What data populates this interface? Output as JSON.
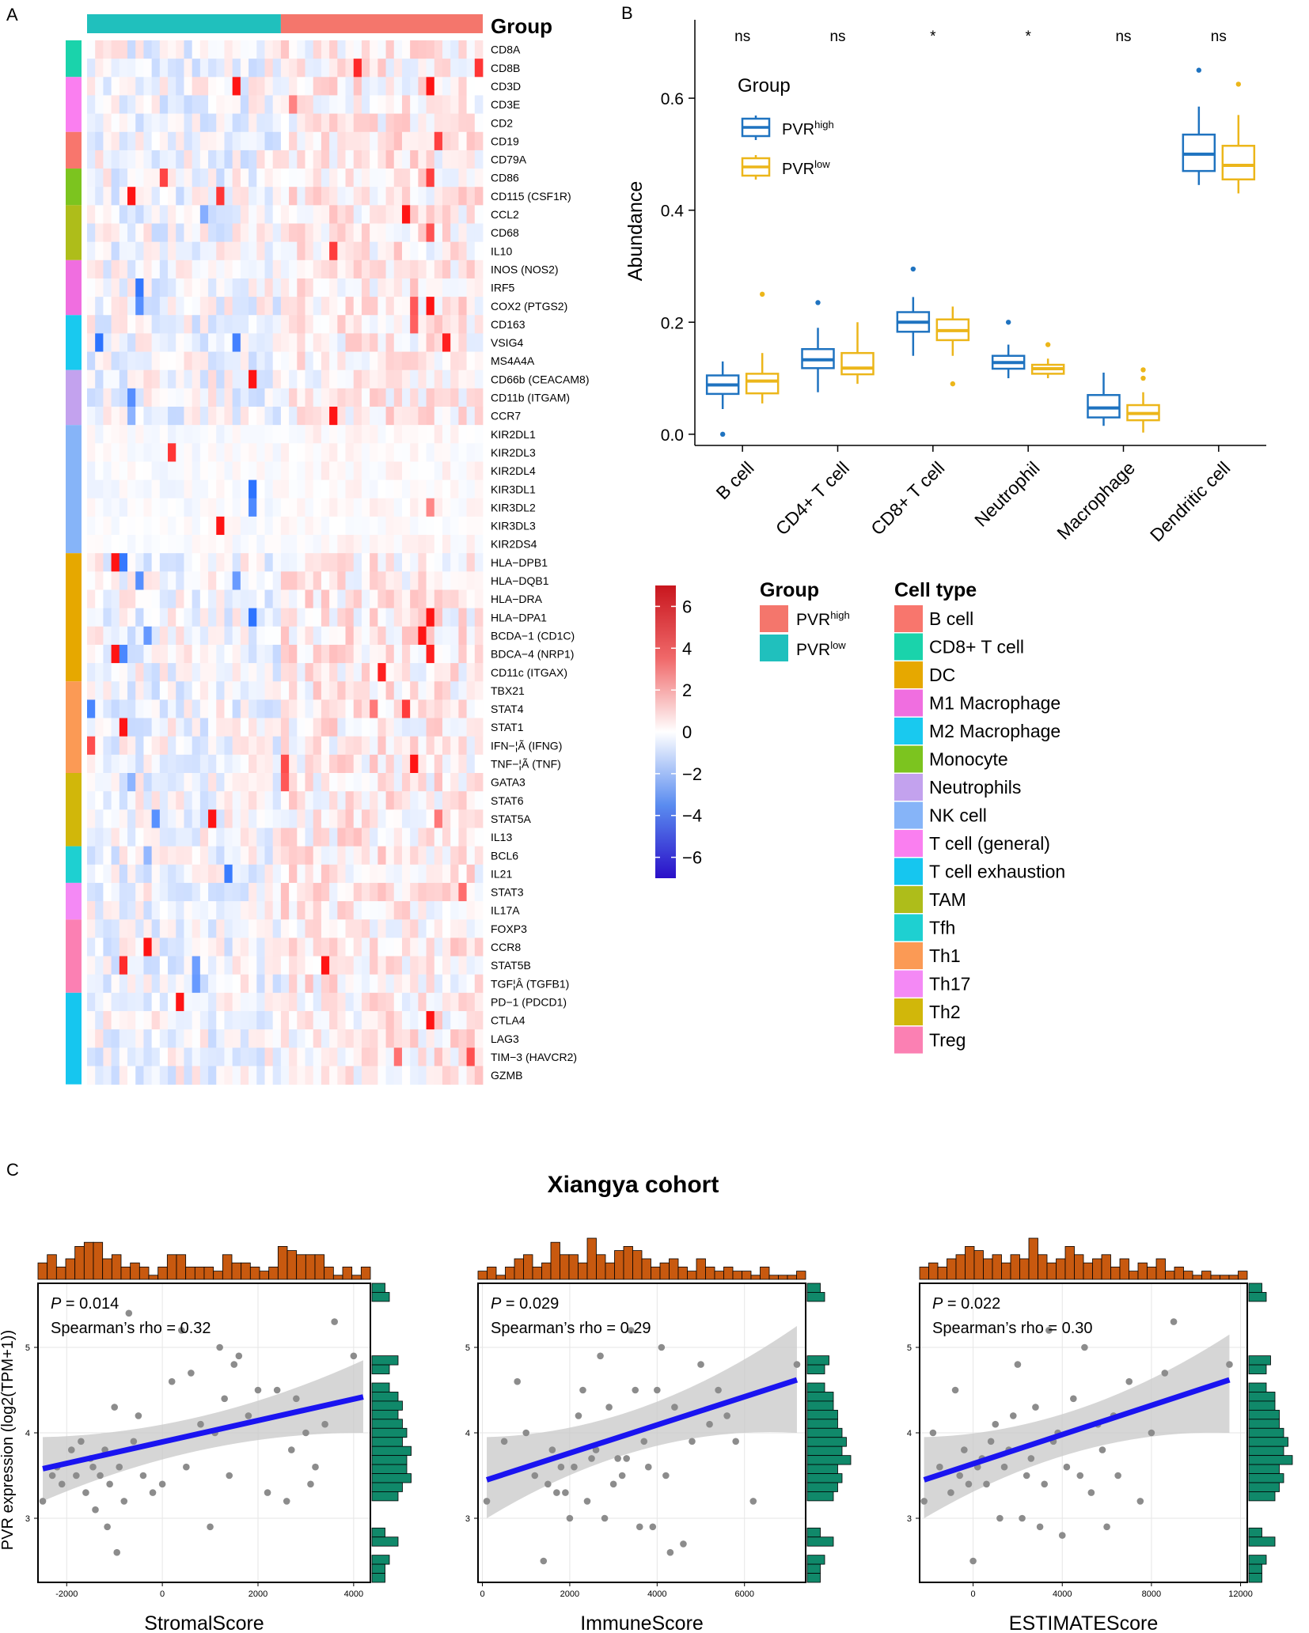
{
  "panel_labels": {
    "a": "A",
    "b": "B",
    "c": "C"
  },
  "chart_data": [
    {
      "id": "A",
      "type": "heatmap",
      "title": "",
      "legend_title": "Group",
      "genes": [
        "CD8A",
        "CD8B",
        "CD3D",
        "CD3E",
        "CD2",
        "CD19",
        "CD79A",
        "CD86",
        "CD115 (CSF1R)",
        "CCL2",
        "CD68",
        "IL10",
        "INOS (NOS2)",
        "IRF5",
        "COX2 (PTGS2)",
        "CD163",
        "VSIG4",
        "MS4A4A",
        "CD66b (CEACAM8)",
        "CD11b (ITGAM)",
        "CCR7",
        "KIR2DL1",
        "KIR2DL3",
        "KIR2DL4",
        "KIR3DL1",
        "KIR3DL2",
        "KIR3DL3",
        "KIR2DS4",
        "HLA−DPB1",
        "HLA−DQB1",
        "HLA−DRA",
        "HLA−DPA1",
        "BCDA−1 (CD1C)",
        "BDCA−4 (NRP1)",
        "CD11c (ITGAX)",
        "TBX21",
        "STAT4",
        "STAT1",
        "IFN−¦Ã (IFNG)",
        "TNF−¦Ã (TNF)",
        "GATA3",
        "STAT6",
        "STAT5A",
        "IL13",
        "BCL6",
        "IL21",
        "STAT3",
        "IL17A",
        "FOXP3",
        "CCR8",
        "STAT5B",
        "TGF¦Â (TGFB1)",
        "PD−1 (PDCD1)",
        "CTLA4",
        "LAG3",
        "TIM−3 (HAVCR2)",
        "GZMB"
      ],
      "groups": [
        {
          "name": "PVRlow",
          "n_samples": 24,
          "color": "#20c0bd"
        },
        {
          "name": "PVRhigh",
          "n_samples": 25,
          "color": "#f4766c"
        }
      ],
      "color_scale": {
        "ticks": [
          "6",
          "4",
          "2",
          "0",
          "−2",
          "−4",
          "−6"
        ],
        "range": [
          -7,
          7
        ],
        "low": "#2a0fc8",
        "mid": "#ffffff",
        "high": "#d21a1a"
      },
      "values_note": "z-scored expression per gene; cell values not readable individually"
    },
    {
      "id": "B",
      "type": "box",
      "ylabel": "Abundance",
      "xlabel": "",
      "ylim": [
        -0.02,
        0.74
      ],
      "yticks": [
        "0.0",
        "0.2",
        "0.4",
        "0.6"
      ],
      "categories": [
        "B cell",
        "CD4+ T cell",
        "CD8+ T cell",
        "Neutrophil",
        "Macrophage",
        "Dendritic cell"
      ],
      "significance": [
        "ns",
        "ns",
        "*",
        "*",
        "ns",
        "ns"
      ],
      "legend": {
        "title": "Group",
        "items": [
          {
            "base": "PVR",
            "sup": "high"
          },
          {
            "base": "PVR",
            "sup": "low"
          }
        ]
      },
      "series": [
        {
          "name": "PVRhigh",
          "color": "#1f73c0",
          "boxes": [
            {
              "min": 0.045,
              "q1": 0.072,
              "med": 0.088,
              "q3": 0.105,
              "max": 0.13,
              "outliers": [
                0.0
              ]
            },
            {
              "min": 0.075,
              "q1": 0.118,
              "med": 0.133,
              "q3": 0.152,
              "max": 0.19,
              "outliers": [
                0.235
              ]
            },
            {
              "min": 0.14,
              "q1": 0.183,
              "med": 0.2,
              "q3": 0.218,
              "max": 0.245,
              "outliers": [
                0.295
              ]
            },
            {
              "min": 0.1,
              "q1": 0.117,
              "med": 0.128,
              "q3": 0.14,
              "max": 0.16,
              "outliers": [
                0.2
              ]
            },
            {
              "min": 0.015,
              "q1": 0.03,
              "med": 0.047,
              "q3": 0.07,
              "max": 0.11,
              "outliers": []
            },
            {
              "min": 0.445,
              "q1": 0.47,
              "med": 0.5,
              "q3": 0.535,
              "max": 0.585,
              "outliers": [
                0.65
              ]
            }
          ]
        },
        {
          "name": "PVRlow",
          "color": "#ecb61a",
          "boxes": [
            {
              "min": 0.055,
              "q1": 0.073,
              "med": 0.095,
              "q3": 0.108,
              "max": 0.145,
              "outliers": [
                0.25
              ]
            },
            {
              "min": 0.09,
              "q1": 0.107,
              "med": 0.118,
              "q3": 0.145,
              "max": 0.2,
              "outliers": []
            },
            {
              "min": 0.14,
              "q1": 0.168,
              "med": 0.185,
              "q3": 0.205,
              "max": 0.228,
              "outliers": [
                0.09
              ]
            },
            {
              "min": 0.1,
              "q1": 0.108,
              "med": 0.117,
              "q3": 0.124,
              "max": 0.135,
              "outliers": [
                0.16
              ]
            },
            {
              "min": 0.003,
              "q1": 0.025,
              "med": 0.037,
              "q3": 0.052,
              "max": 0.075,
              "outliers": [
                0.1,
                0.115
              ]
            },
            {
              "min": 0.43,
              "q1": 0.455,
              "med": 0.48,
              "q3": 0.515,
              "max": 0.57,
              "outliers": [
                0.625
              ]
            }
          ]
        }
      ]
    },
    {
      "id": "C1",
      "type": "scatter",
      "xlabel": "StromalScore",
      "ylabel": "PVR expression (log2(TPM+1))",
      "xlim": [
        -2600,
        4350
      ],
      "ylim": [
        2.25,
        5.75
      ],
      "xticks": [
        -2000,
        0,
        2000,
        4000
      ],
      "yticks": [
        3,
        4,
        5
      ],
      "annotation_p": "= 0.014",
      "annotation_rho": "Spearman’s rho = 0.32",
      "fit": {
        "x": [
          -2500,
          4200
        ],
        "y": [
          3.58,
          4.42
        ],
        "ci_low_left": 3.2,
        "ci_high_left": 3.95,
        "ci_low_right": 4.0,
        "ci_high_right": 4.85
      },
      "points": {
        "x": [
          -2500,
          -2300,
          -2200,
          -2100,
          -1900,
          -1800,
          -1700,
          -1600,
          -1500,
          -1450,
          -1400,
          -1300,
          -1200,
          -1150,
          -1100,
          -1000,
          -950,
          -900,
          -800,
          -700,
          -600,
          -500,
          -400,
          -200,
          0,
          200,
          400,
          500,
          600,
          800,
          1000,
          1100,
          1200,
          1300,
          1400,
          1500,
          1600,
          1800,
          2000,
          2200,
          2400,
          2600,
          2700,
          2800,
          3000,
          3100,
          3200,
          3400,
          3600,
          4000
        ],
        "y": [
          3.2,
          3.5,
          3.6,
          3.4,
          3.8,
          3.5,
          3.9,
          3.3,
          3.7,
          3.6,
          3.1,
          3.5,
          3.8,
          2.9,
          3.4,
          4.3,
          2.6,
          3.6,
          3.2,
          5.4,
          3.9,
          4.2,
          3.5,
          3.3,
          3.4,
          4.6,
          5.2,
          3.6,
          4.7,
          4.1,
          2.9,
          4.0,
          5.0,
          4.4,
          3.5,
          4.8,
          4.9,
          4.2,
          4.5,
          3.3,
          4.5,
          3.2,
          3.8,
          4.4,
          4.0,
          3.4,
          3.6,
          4.1,
          5.3,
          4.9
        ]
      },
      "top_hist": [
        0.4,
        0.6,
        0.3,
        0.5,
        0.8,
        0.9,
        0.9,
        0.5,
        0.6,
        0.3,
        0.4,
        0.3,
        0.1,
        0.3,
        0.6,
        0.6,
        0.3,
        0.3,
        0.3,
        0.2,
        0.6,
        0.4,
        0.4,
        0.3,
        0.2,
        0.3,
        0.8,
        0.7,
        0.6,
        0.6,
        0.6,
        0.3,
        0.1,
        0.3,
        0.1,
        0.3
      ],
      "right_hist": [
        0.3,
        0.4,
        0,
        0,
        0,
        0,
        0,
        0,
        0.6,
        0.4,
        0,
        0.4,
        0.6,
        0.7,
        0.6,
        0.7,
        0.8,
        0.7,
        0.9,
        0.8,
        0.8,
        0.9,
        0.7,
        0.6,
        0,
        0,
        0,
        0.3,
        0.6,
        0,
        0.4,
        0.3,
        0.3
      ]
    },
    {
      "id": "C2",
      "type": "scatter",
      "xlabel": "ImmuneScore",
      "ylabel": "",
      "xlim": [
        -100,
        7400
      ],
      "ylim": [
        2.25,
        5.75
      ],
      "xticks": [
        0,
        2000,
        4000,
        6000
      ],
      "yticks": [
        3,
        4,
        5
      ],
      "annotation_p": "= 0.029",
      "annotation_rho": "Spearman’s rho = 0.29",
      "fit": {
        "x": [
          100,
          7200
        ],
        "y": [
          3.45,
          4.62
        ],
        "ci_low_left": 3.0,
        "ci_high_left": 3.95,
        "ci_low_right": 4.0,
        "ci_high_right": 5.25
      },
      "points": {
        "x": [
          100,
          500,
          800,
          1000,
          1200,
          1400,
          1500,
          1600,
          1700,
          1800,
          1900,
          2000,
          2100,
          2200,
          2300,
          2400,
          2500,
          2600,
          2700,
          2800,
          2900,
          3000,
          3100,
          3200,
          3300,
          3400,
          3500,
          3600,
          3700,
          3800,
          3900,
          4000,
          4100,
          4200,
          4300,
          4400,
          4600,
          4800,
          5000,
          5200,
          5400,
          5600,
          5800,
          6200,
          7200
        ],
        "y": [
          3.2,
          3.9,
          4.6,
          4.0,
          3.5,
          2.5,
          3.4,
          3.8,
          3.3,
          3.6,
          3.3,
          3.0,
          3.6,
          4.2,
          4.5,
          3.2,
          3.7,
          3.8,
          4.9,
          3.0,
          4.3,
          3.4,
          3.7,
          3.5,
          3.7,
          5.2,
          4.5,
          2.9,
          3.9,
          3.6,
          2.9,
          4.5,
          5.0,
          3.5,
          2.6,
          4.3,
          2.7,
          3.9,
          4.8,
          4.1,
          4.5,
          4.2,
          3.9,
          3.2,
          4.8
        ]
      },
      "top_hist": [
        0.2,
        0.3,
        0.1,
        0.3,
        0.5,
        0.6,
        0.3,
        0.4,
        0.9,
        0.6,
        0.6,
        0.4,
        1.0,
        0.6,
        0.4,
        0.7,
        0.8,
        0.7,
        0.5,
        0.3,
        0.4,
        0.5,
        0.3,
        0.2,
        0.5,
        0.3,
        0.2,
        0.3,
        0.2,
        0.2,
        0.1,
        0.3,
        0.1,
        0.1,
        0.1,
        0.2
      ],
      "right_hist": [
        0.3,
        0.4,
        0,
        0,
        0,
        0,
        0,
        0,
        0.5,
        0.4,
        0,
        0.4,
        0.6,
        0.6,
        0.7,
        0.7,
        0.8,
        0.9,
        0.8,
        1.0,
        0.7,
        0.8,
        0.7,
        0.6,
        0,
        0,
        0,
        0.3,
        0.6,
        0,
        0.4,
        0.3,
        0.3
      ]
    },
    {
      "id": "C3",
      "type": "scatter",
      "xlabel": "ESTIMATEScore",
      "ylabel": "",
      "xlim": [
        -2400,
        12300
      ],
      "ylim": [
        2.25,
        5.75
      ],
      "xticks": [
        0,
        4000,
        8000,
        12000
      ],
      "yticks": [
        3,
        4,
        5
      ],
      "annotation_p": "= 0.022",
      "annotation_rho": "Spearman’s rho = 0.30",
      "fit": {
        "x": [
          -2200,
          11500
        ],
        "y": [
          3.45,
          4.62
        ],
        "ci_low_left": 3.0,
        "ci_high_left": 3.95,
        "ci_low_right": 4.0,
        "ci_high_right": 5.15
      },
      "points": {
        "x": [
          -2200,
          -1800,
          -1500,
          -1000,
          -800,
          -600,
          -400,
          -200,
          0,
          200,
          400,
          600,
          800,
          1000,
          1200,
          1400,
          1600,
          1800,
          2000,
          2200,
          2400,
          2600,
          2800,
          3000,
          3200,
          3400,
          3600,
          3800,
          4000,
          4200,
          4500,
          4800,
          5000,
          5300,
          5600,
          5800,
          6000,
          6300,
          6500,
          7000,
          7500,
          8000,
          8600,
          9000,
          11500
        ],
        "y": [
          3.2,
          4.0,
          3.6,
          3.3,
          4.5,
          3.5,
          3.8,
          3.4,
          2.5,
          3.6,
          3.7,
          3.4,
          3.9,
          4.1,
          3.0,
          3.6,
          3.8,
          4.2,
          4.8,
          3.0,
          3.5,
          3.7,
          4.3,
          2.9,
          3.4,
          5.2,
          3.9,
          4.0,
          2.8,
          3.6,
          4.4,
          3.5,
          5.0,
          3.3,
          4.1,
          3.8,
          2.9,
          4.2,
          3.5,
          4.6,
          3.2,
          4.0,
          4.7,
          5.3,
          4.8
        ]
      },
      "top_hist": [
        0.3,
        0.4,
        0.3,
        0.5,
        0.6,
        0.8,
        0.7,
        0.5,
        0.6,
        0.4,
        0.6,
        0.5,
        1.0,
        0.6,
        0.4,
        0.5,
        0.8,
        0.6,
        0.4,
        0.5,
        0.6,
        0.3,
        0.5,
        0.2,
        0.4,
        0.3,
        0.5,
        0.2,
        0.3,
        0.2,
        0.1,
        0.2,
        0.1,
        0.1,
        0.1,
        0.2
      ],
      "right_hist": [
        0.3,
        0.4,
        0,
        0,
        0,
        0,
        0,
        0,
        0.5,
        0.4,
        0,
        0.4,
        0.6,
        0.6,
        0.7,
        0.7,
        0.8,
        0.9,
        0.8,
        1.0,
        0.7,
        0.8,
        0.7,
        0.6,
        0,
        0,
        0,
        0.3,
        0.6,
        0,
        0.4,
        0.3,
        0.3
      ]
    }
  ],
  "panelC_title": "Xiangya cohort",
  "legends": {
    "group_title": "Group",
    "group_items": [
      {
        "base": "PVR",
        "sup": "high",
        "color": "#f4766c"
      },
      {
        "base": "PVR",
        "sup": "low",
        "color": "#20c0bd"
      }
    ],
    "celltype_title": "Cell type",
    "celltype_items": [
      {
        "label": "B cell",
        "color": "#f8766d"
      },
      {
        "label": "CD8+ T cell",
        "color": "#1ad3ab"
      },
      {
        "label": "DC",
        "color": "#e6a800"
      },
      {
        "label": "M1 Macrophage",
        "color": "#f06ee0"
      },
      {
        "label": "M2 Macrophage",
        "color": "#19c9ef"
      },
      {
        "label": "Monocyte",
        "color": "#7cc41f"
      },
      {
        "label": "Neutrophils",
        "color": "#c3a2ee"
      },
      {
        "label": "NK cell",
        "color": "#86b4f8"
      },
      {
        "label": "T cell (general)",
        "color": "#fa7ff0"
      },
      {
        "label": "T cell exhaustion",
        "color": "#16c6ef"
      },
      {
        "label": "TAM",
        "color": "#aebd1a"
      },
      {
        "label": "Tfh",
        "color": "#1ed0d1"
      },
      {
        "label": "Th1",
        "color": "#fb9a55"
      },
      {
        "label": "Th17",
        "color": "#f489f5"
      },
      {
        "label": "Th2",
        "color": "#d1b70a"
      },
      {
        "label": "Treg",
        "color": "#fb80b3"
      }
    ]
  },
  "celltype_blocks": [
    {
      "type": "CD8+ T cell",
      "rows": 2
    },
    {
      "type": "T cell (general)",
      "rows": 3
    },
    {
      "type": "B cell",
      "rows": 2
    },
    {
      "type": "Monocyte",
      "rows": 2
    },
    {
      "type": "TAM",
      "rows": 3
    },
    {
      "type": "M1 Macrophage",
      "rows": 3
    },
    {
      "type": "M2 Macrophage",
      "rows": 3
    },
    {
      "type": "Neutrophils",
      "rows": 3
    },
    {
      "type": "NK cell",
      "rows": 7
    },
    {
      "type": "DC",
      "rows": 7
    },
    {
      "type": "Th1",
      "rows": 5
    },
    {
      "type": "Th2",
      "rows": 4
    },
    {
      "type": "Tfh",
      "rows": 2
    },
    {
      "type": "Th17",
      "rows": 2
    },
    {
      "type": "Treg",
      "rows": 4
    },
    {
      "type": "T cell exhaustion",
      "rows": 5
    }
  ]
}
